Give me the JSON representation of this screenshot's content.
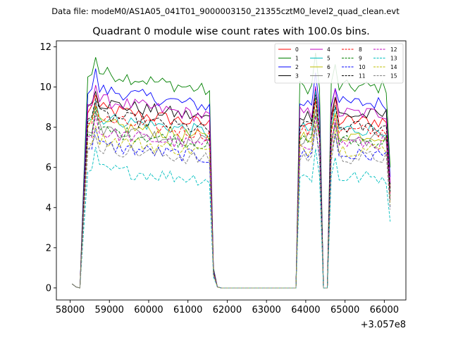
{
  "chart_data": {
    "type": "line",
    "suptitle": "Data file: modeM0/AS1A05_041T01_9000003150_21355cztM0_level2_quad_clean.evt",
    "title": "Quadrant 0 module wise count rates with 100.0s bins.",
    "xlabel": "",
    "ylabel": "",
    "offset_text": "+3.057e8",
    "xlim": [
      57650,
      66550
    ],
    "ylim": [
      -0.6,
      12.3
    ],
    "xticks": [
      58000,
      59000,
      60000,
      61000,
      62000,
      63000,
      64000,
      65000,
      66000
    ],
    "xtick_labels": [
      "58000",
      "59000",
      "60000",
      "61000",
      "62000",
      "63000",
      "64000",
      "65000",
      "66000"
    ],
    "yticks": [
      0,
      2,
      4,
      6,
      8,
      10,
      12
    ],
    "ytick_labels": [
      "0",
      "2",
      "4",
      "6",
      "8",
      "10",
      "12"
    ],
    "grid": false,
    "legend_position": "top-right",
    "legend_columns": 4,
    "segments": [
      {
        "start": 58050,
        "end": 58150,
        "shape": "low"
      },
      {
        "start": 58250,
        "end": 58450,
        "shape": "ramp"
      },
      {
        "start": 58550,
        "end": 61550,
        "shape": "plateau"
      },
      {
        "start": 61650,
        "end": 61750,
        "shape": "drop"
      },
      {
        "start": 61850,
        "end": 63750,
        "shape": "zero"
      },
      {
        "start": 63850,
        "end": 64350,
        "shape": "plateau"
      },
      {
        "start": 64450,
        "end": 64550,
        "shape": "dip"
      },
      {
        "start": 64650,
        "end": 66150,
        "shape": "plateau"
      }
    ],
    "series": [
      {
        "name": "0",
        "color": "#ff0000",
        "dash": "solid",
        "level": 8.3
      },
      {
        "name": "1",
        "color": "#008000",
        "dash": "solid",
        "level": 10.0
      },
      {
        "name": "2",
        "color": "#0000ff",
        "dash": "solid",
        "level": 9.2
      },
      {
        "name": "3",
        "color": "#000000",
        "dash": "solid",
        "level": 8.6
      },
      {
        "name": "4",
        "color": "#bf00bf",
        "dash": "solid",
        "level": 8.7
      },
      {
        "name": "5",
        "color": "#00bfbf",
        "dash": "solid",
        "level": 7.9
      },
      {
        "name": "6",
        "color": "#bfbf00",
        "dash": "solid",
        "level": 7.6
      },
      {
        "name": "7",
        "color": "#808080",
        "dash": "solid",
        "level": 7.4
      },
      {
        "name": "8",
        "color": "#ff0000",
        "dash": "dashed",
        "level": 7.8
      },
      {
        "name": "9",
        "color": "#008000",
        "dash": "dashed",
        "level": 7.3
      },
      {
        "name": "10",
        "color": "#0000ff",
        "dash": "dashed",
        "level": 6.6
      },
      {
        "name": "11",
        "color": "#000000",
        "dash": "dashed",
        "level": 8.0
      },
      {
        "name": "12",
        "color": "#bf00bf",
        "dash": "dashed",
        "level": 7.2
      },
      {
        "name": "13",
        "color": "#00bfbf",
        "dash": "dashed",
        "level": 5.5
      },
      {
        "name": "14",
        "color": "#bfbf00",
        "dash": "dashed",
        "level": 6.9
      },
      {
        "name": "15",
        "color": "#808080",
        "dash": "dashed",
        "level": 6.5
      }
    ]
  }
}
